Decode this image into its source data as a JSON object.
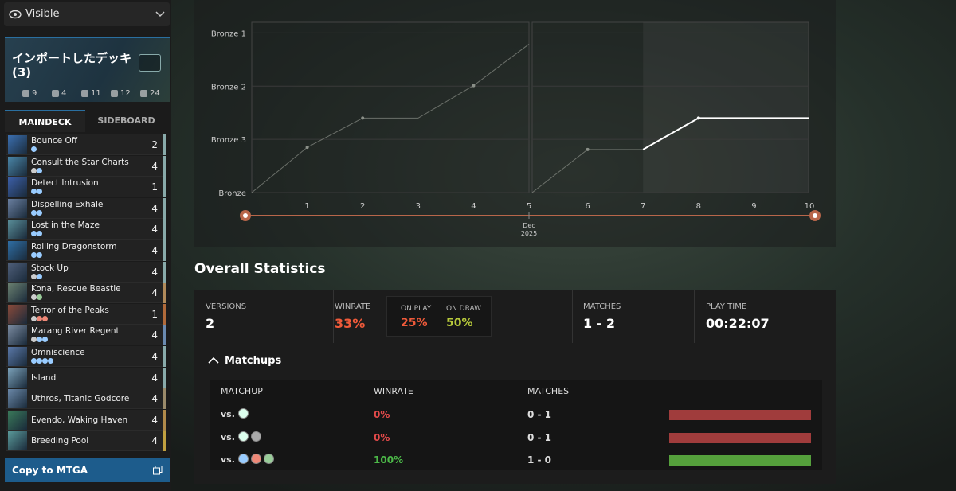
{
  "visibility": {
    "label": "Visible"
  },
  "deck": {
    "title": "インポートしたデッキ (3)",
    "type_counts": [
      9,
      4,
      11,
      12,
      24
    ],
    "tabs": [
      "MAINDECK",
      "SIDEBOARD"
    ],
    "cards": [
      {
        "name": "Bounce Off",
        "count": 2
      },
      {
        "name": "Consult the Star Charts",
        "count": 4
      },
      {
        "name": "Detect Intrusion",
        "count": 1
      },
      {
        "name": "Dispelling Exhale",
        "count": 4
      },
      {
        "name": "Lost in the Maze",
        "count": 4
      },
      {
        "name": "Roiling Dragonstorm",
        "count": 4
      },
      {
        "name": "Stock Up",
        "count": 4
      },
      {
        "name": "Kona, Rescue Beastie",
        "count": 4
      },
      {
        "name": "Terror of the Peaks",
        "count": 1
      },
      {
        "name": "Marang River Regent",
        "count": 4
      },
      {
        "name": "Omniscience",
        "count": 4
      },
      {
        "name": "Island",
        "count": 4
      },
      {
        "name": "Uthros, Titanic Godcore",
        "count": 4
      },
      {
        "name": "Evendo, Waking Haven",
        "count": 4
      },
      {
        "name": "Breeding Pool",
        "count": 4
      }
    ],
    "copy_button": "Copy to MTGA"
  },
  "chart_data": {
    "type": "line",
    "series": [
      {
        "color": "#8a8f88",
        "x": [
          0,
          1,
          2,
          3,
          4,
          5
        ],
        "values": [
          0,
          0.85,
          1.4,
          1.4,
          2.01,
          2.79
        ]
      },
      {
        "color": "#8a8f88",
        "x": [
          5,
          6,
          7,
          8,
          9,
          10
        ],
        "values": [
          0,
          0.81,
          0.81,
          1.4,
          1.4,
          1.4
        ]
      }
    ],
    "highlight_color": "#ffffff",
    "highlight_from": 7,
    "xlim": [
      0,
      10
    ],
    "xticks": [
      1,
      2,
      3,
      4,
      5,
      6,
      7,
      8,
      9,
      10
    ],
    "x_date_label": [
      "Dec",
      "2025"
    ],
    "ylim": [
      0,
      3.2
    ],
    "yticks": [
      {
        "value": 0,
        "label": "Bronze"
      },
      {
        "value": 1,
        "label": "Bronze 3"
      },
      {
        "value": 2,
        "label": "Bronze 2"
      },
      {
        "value": 3,
        "label": "Bronze 1"
      }
    ],
    "grid": true
  },
  "stats": {
    "title": "Overall Statistics",
    "versions": {
      "label": "VERSIONS",
      "value": "2"
    },
    "winrate": {
      "label": "WINRATE",
      "value": "33%"
    },
    "on_play": {
      "label": "ON PLAY",
      "value": "25%"
    },
    "on_draw": {
      "label": "ON DRAW",
      "value": "50%"
    },
    "matches": {
      "label": "MATCHES",
      "value": "1 - 2"
    },
    "play_time": {
      "label": "PLAY TIME",
      "value": "00:22:07"
    }
  },
  "matchups": {
    "title": "Matchups",
    "headers": [
      "MATCHUP",
      "WINRATE",
      "MATCHES"
    ],
    "vs_label": "vs.",
    "rows": [
      {
        "winrate": "0%",
        "matches": "0 - 1"
      },
      {
        "winrate": "0%",
        "matches": "0 - 1"
      },
      {
        "winrate": "100%",
        "matches": "1 - 0"
      }
    ]
  }
}
